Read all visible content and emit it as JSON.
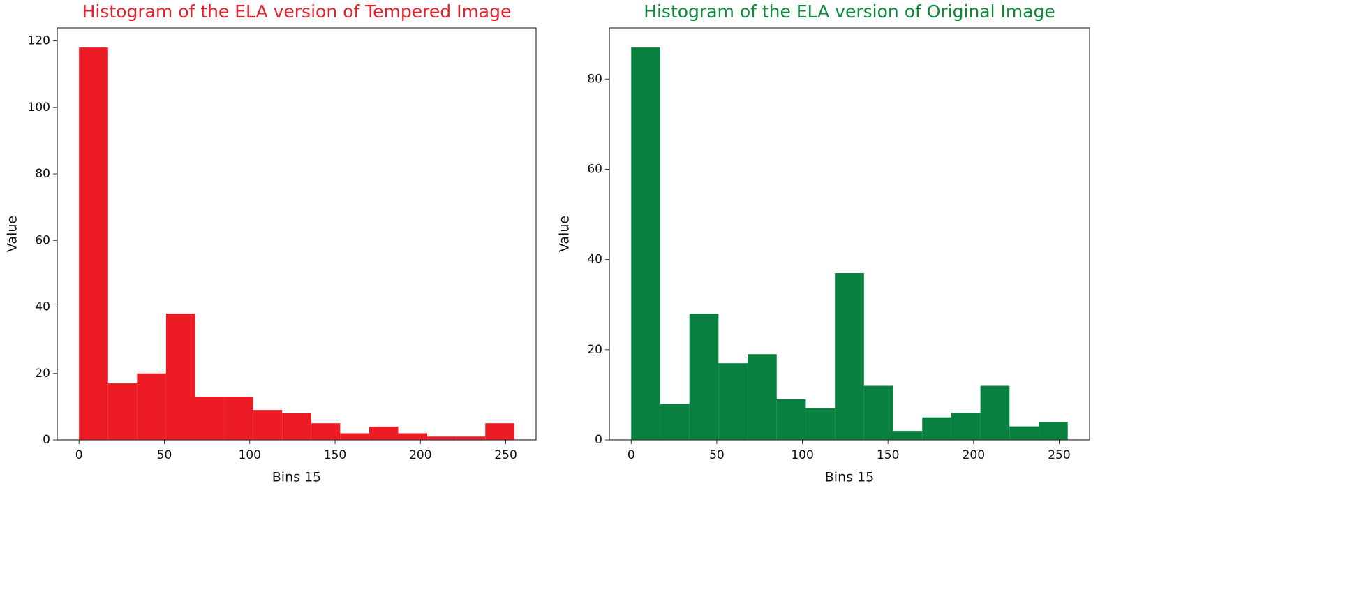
{
  "chart_data": [
    {
      "type": "histogram",
      "title": "Histogram of the ELA version of Tempered Image",
      "title_color": "#e8202a",
      "xlabel": "Bins 15",
      "ylabel": "Value",
      "color": "#ed1c24",
      "bins": [
        0,
        17,
        34,
        51,
        68,
        85,
        102,
        119,
        136,
        153,
        170,
        187,
        204,
        221,
        238,
        255
      ],
      "values": [
        118,
        17,
        20,
        38,
        13,
        13,
        9,
        8,
        5,
        2,
        4,
        2,
        1,
        1,
        5
      ],
      "xlim": [
        -12.75,
        267.75
      ],
      "ylim": [
        0,
        123.9
      ],
      "xticks": [
        0,
        50,
        100,
        150,
        200,
        250
      ],
      "yticks": [
        0,
        20,
        40,
        60,
        80,
        100,
        120
      ]
    },
    {
      "type": "histogram",
      "title": "Histogram of the ELA version of Original Image",
      "title_color": "#0d8a3c",
      "xlabel": "Bins 15",
      "ylabel": "Value",
      "color": "#0a8040",
      "bins": [
        0,
        17,
        34,
        51,
        68,
        85,
        102,
        119,
        136,
        153,
        170,
        187,
        204,
        221,
        238,
        255
      ],
      "values": [
        87,
        8,
        28,
        17,
        19,
        9,
        7,
        37,
        12,
        2,
        5,
        6,
        12,
        3,
        4
      ],
      "xlim": [
        -12.75,
        267.75
      ],
      "ylim": [
        0,
        91.35
      ],
      "xticks": [
        0,
        50,
        100,
        150,
        200,
        250
      ],
      "yticks": [
        0,
        20,
        40,
        60,
        80
      ]
    }
  ]
}
